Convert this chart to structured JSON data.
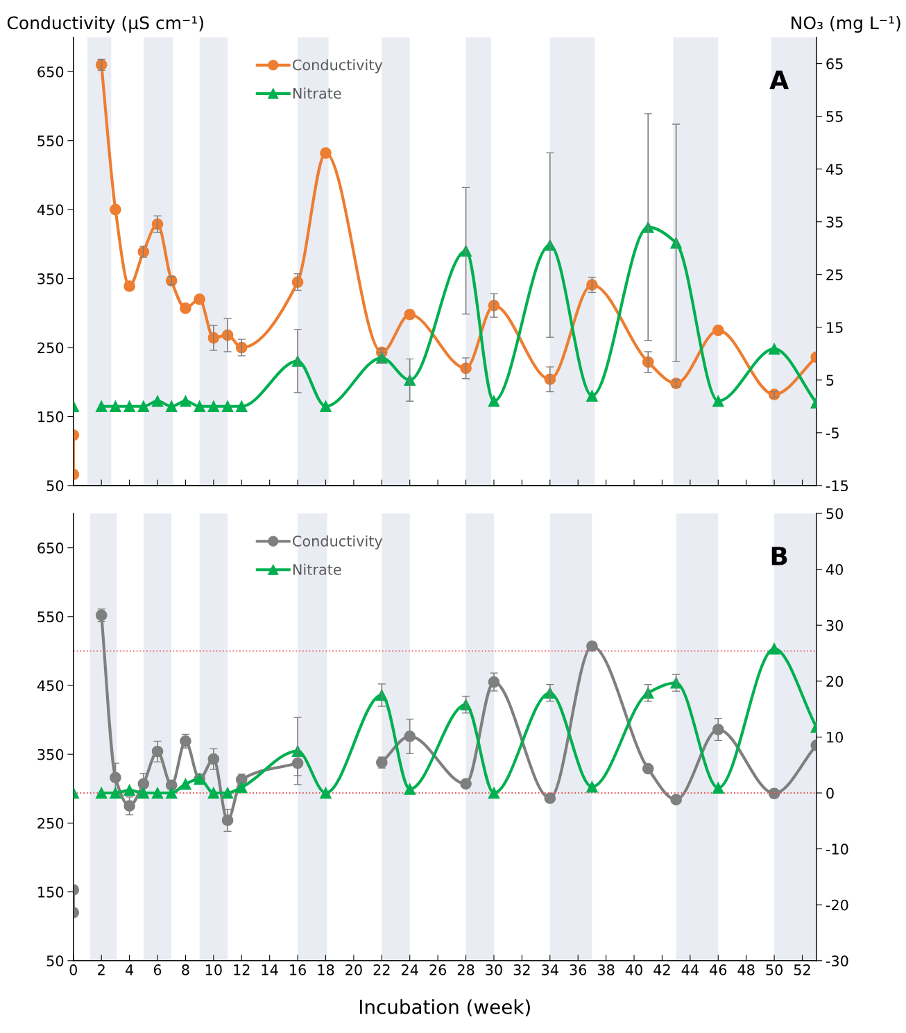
{
  "chart_data": [
    {
      "type": "line",
      "ylabel": "Conductivity (µS cm⁻¹)",
      "y2label": "NO₃ (mg L⁻¹)",
      "annotations": [
        "A"
      ],
      "xlim": [
        0,
        53
      ],
      "xticks": [
        0,
        2,
        4,
        6,
        8,
        10,
        12,
        14,
        16,
        18,
        20,
        22,
        24,
        26,
        28,
        30,
        32,
        34,
        36,
        38,
        40,
        42,
        44,
        46,
        48,
        50,
        52
      ],
      "ylim": [
        50,
        700
      ],
      "yticks": [
        50,
        150,
        250,
        350,
        450,
        550,
        650
      ],
      "y2lim": [
        -15,
        70
      ],
      "y2ticks": [
        -15,
        -5,
        5,
        15,
        25,
        35,
        45,
        55,
        65
      ],
      "tick_labels": "y",
      "legend": "top left",
      "grid": false,
      "line_style": "solid",
      "bands": [
        {
          "axis": "x",
          "from": 1,
          "to": 2.7,
          "color": "#e9edf3"
        },
        {
          "axis": "x",
          "from": 5,
          "to": 7.1,
          "color": "#e9edf3"
        },
        {
          "axis": "x",
          "from": 9,
          "to": 11,
          "color": "#e9edf3"
        },
        {
          "axis": "x",
          "from": 16,
          "to": 18.2,
          "color": "#e9edf3"
        },
        {
          "axis": "x",
          "from": 22,
          "to": 24,
          "color": "#e9edf3"
        },
        {
          "axis": "x",
          "from": 28,
          "to": 29.8,
          "color": "#e9edf3"
        },
        {
          "axis": "x",
          "from": 34,
          "to": 37.2,
          "color": "#e9edf3"
        },
        {
          "axis": "x",
          "from": 42.8,
          "to": 46,
          "color": "#e9edf3"
        },
        {
          "axis": "x",
          "from": 49.8,
          "to": 53,
          "color": "#e9edf3"
        }
      ],
      "series": [
        {
          "name": "Conductivity",
          "color": "#ed7d31",
          "marker": "circle",
          "x": [
            0,
            0,
            1,
            2,
            3,
            4,
            5,
            6,
            7,
            8,
            9,
            10,
            11,
            12,
            16,
            18,
            22,
            24,
            28,
            30,
            34,
            37,
            41,
            43,
            46,
            50,
            53
          ],
          "values": [
            123,
            66,
            null,
            660,
            450,
            339,
            389,
            429,
            347,
            307,
            320,
            264,
            268,
            250,
            345,
            532,
            243,
            298,
            220,
            311,
            204,
            341,
            229,
            198,
            275,
            182,
            236
          ],
          "errors": [
            null,
            null,
            null,
            8,
            null,
            null,
            8,
            12,
            6,
            null,
            null,
            18,
            24,
            12,
            12,
            null,
            5,
            null,
            15,
            17,
            18,
            11,
            15,
            5,
            null,
            4,
            null
          ]
        },
        {
          "name": "Nitrate",
          "color": "#00b050",
          "marker": "triangle",
          "axis": "y2",
          "x": [
            0,
            1,
            2,
            3,
            4,
            5,
            6,
            7,
            8,
            9,
            10,
            11,
            12,
            16,
            18,
            22,
            24,
            28,
            30,
            34,
            37,
            41,
            43,
            46,
            50,
            53
          ],
          "values": [
            0,
            null,
            0,
            0,
            0,
            0,
            1,
            0,
            1,
            0,
            0,
            0,
            0,
            8.6,
            0,
            9.2,
            5,
            29.5,
            1,
            30.6,
            2,
            34,
            31,
            1,
            10.9,
            0.7
          ],
          "errors": [
            null,
            null,
            null,
            null,
            null,
            null,
            null,
            null,
            null,
            null,
            null,
            null,
            null,
            6,
            null,
            1,
            4,
            12,
            null,
            17.5,
            null,
            21.5,
            22.5,
            null,
            null,
            null
          ]
        }
      ]
    },
    {
      "type": "line",
      "xlabel": "Incubation (week)",
      "annotations": [
        "B"
      ],
      "xlim": [
        0,
        53
      ],
      "xticks": [
        0,
        2,
        4,
        6,
        8,
        10,
        12,
        14,
        16,
        18,
        20,
        22,
        24,
        26,
        28,
        30,
        32,
        34,
        36,
        38,
        40,
        42,
        44,
        46,
        48,
        50,
        52
      ],
      "ylim": [
        50,
        700
      ],
      "yticks": [
        50,
        150,
        250,
        350,
        450,
        550,
        650
      ],
      "y2lim": [
        -30,
        50
      ],
      "y2ticks": [
        -30,
        -20,
        -10,
        0,
        10,
        20,
        30,
        40,
        50
      ],
      "legend": "top left",
      "grid": false,
      "line_style": "solid",
      "ref_lines": [
        {
          "axis": "y",
          "value": 500,
          "color": "#e8575a",
          "line_style": "dotted"
        },
        {
          "axis": "y2",
          "value": 0,
          "color": "#e8575a",
          "line_style": "dotted"
        }
      ],
      "bands": [
        {
          "axis": "x",
          "from": 1.2,
          "to": 3.1,
          "color": "#e9edf3"
        },
        {
          "axis": "x",
          "from": 5,
          "to": 7,
          "color": "#e9edf3"
        },
        {
          "axis": "x",
          "from": 9,
          "to": 11,
          "color": "#e9edf3"
        },
        {
          "axis": "x",
          "from": 16,
          "to": 18.1,
          "color": "#e9edf3"
        },
        {
          "axis": "x",
          "from": 22,
          "to": 24,
          "color": "#e9edf3"
        },
        {
          "axis": "x",
          "from": 28,
          "to": 30,
          "color": "#e9edf3"
        },
        {
          "axis": "x",
          "from": 34,
          "to": 37,
          "color": "#e9edf3"
        },
        {
          "axis": "x",
          "from": 43,
          "to": 46,
          "color": "#e9edf3"
        },
        {
          "axis": "x",
          "from": 50,
          "to": 53,
          "color": "#e9edf3"
        }
      ],
      "series": [
        {
          "name": "Conductivity",
          "color": "#7f7f7f",
          "marker": "circle",
          "x": [
            0,
            0,
            1,
            2,
            3,
            4,
            5,
            6,
            7,
            8,
            9,
            10,
            11,
            12,
            16,
            18,
            22,
            24,
            28,
            30,
            34,
            37,
            41,
            43,
            46,
            50,
            53
          ],
          "values": [
            153,
            120,
            null,
            552,
            316,
            275,
            307,
            354,
            305,
            369,
            314,
            343,
            254,
            313,
            337,
            null,
            338,
            376,
            307,
            455,
            286,
            507,
            329,
            284,
            386,
            293,
            363
          ],
          "errors": [
            null,
            null,
            null,
            9,
            21,
            13,
            15,
            15,
            null,
            10,
            null,
            15,
            16,
            8,
            18,
            null,
            8,
            25,
            null,
            13,
            null,
            null,
            null,
            null,
            16,
            6,
            null
          ]
        },
        {
          "name": "Nitrate",
          "color": "#00b050",
          "marker": "triangle",
          "axis": "y2",
          "x": [
            0,
            1,
            2,
            3,
            4,
            5,
            6,
            7,
            8,
            9,
            10,
            11,
            12,
            16,
            18,
            22,
            24,
            28,
            30,
            34,
            37,
            41,
            43,
            46,
            50,
            53
          ],
          "values": [
            0,
            null,
            0,
            0,
            0.5,
            0,
            0,
            0,
            1.6,
            2.5,
            0,
            0,
            1,
            7.5,
            0,
            17.5,
            0.7,
            15.8,
            0,
            17.9,
            1.1,
            17.9,
            19.7,
            0.9,
            25.8,
            11.8
          ],
          "errors": [
            null,
            null,
            null,
            null,
            null,
            null,
            null,
            null,
            null,
            null,
            null,
            null,
            null,
            6,
            null,
            2,
            null,
            1.5,
            null,
            1.5,
            null,
            1.5,
            1.5,
            null,
            null,
            null
          ]
        }
      ]
    }
  ]
}
